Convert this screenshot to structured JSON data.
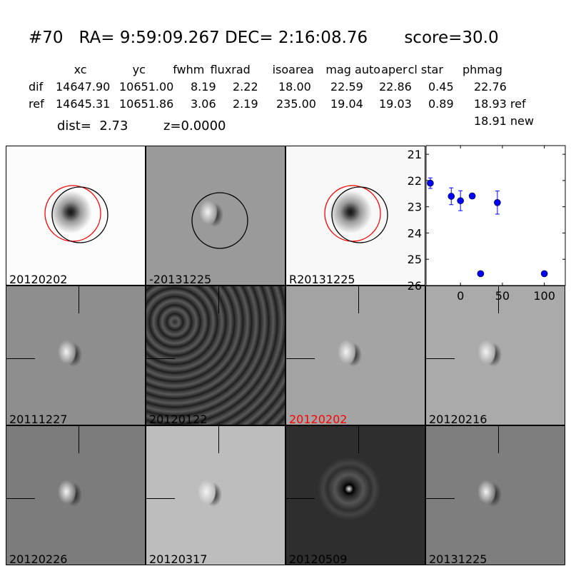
{
  "title": "#70   RA= 9:59:09.267 DEC= 2:16:08.76       score=30.0",
  "table": {
    "headers": [
      "xc",
      "yc",
      "fwhm",
      "fluxrad",
      "isoarea",
      "mag auto",
      "aper",
      "cl star",
      "phmag"
    ],
    "rows": [
      {
        "label": "dif",
        "values": [
          "14647.90",
          "10651.00",
          "8.19",
          "2.22",
          "18.00",
          "22.59",
          "22.86",
          "0.45",
          "22.76"
        ]
      },
      {
        "label": "ref",
        "values": [
          "14645.31",
          "10651.86",
          "3.06",
          "2.19",
          "235.00",
          "19.04",
          "19.03",
          "0.89",
          "18.93 ref"
        ]
      }
    ],
    "extra": "18.91 new"
  },
  "dist": "dist=  2.73",
  "z": "z=0.0000",
  "panels": [
    {
      "label": "20120202",
      "bg": "#fcfcfc",
      "blob": "dark"
    },
    {
      "label": "-20131225",
      "bg": "#9a9a9a",
      "blob": "dipole"
    },
    {
      "label": "R20131225",
      "bg": "#f8f8f8",
      "blob": "dark"
    },
    null,
    {
      "label": "20111227",
      "bg": "#8e8e8e",
      "blob": "dipole"
    },
    {
      "label": "20120122",
      "bg": "#7a7a7a",
      "blob": "noise"
    },
    {
      "label": "20120202",
      "bg": "#a4a4a4",
      "blob": "dipole",
      "label_color": "#ff0000"
    },
    {
      "label": "20120216",
      "bg": "#aaaaaa",
      "blob": "dipole"
    },
    {
      "label": "20120226",
      "bg": "#7c7c7c",
      "blob": "dipole"
    },
    {
      "label": "20120317",
      "bg": "#bdbdbd",
      "blob": "dipole"
    },
    {
      "label": "20120509",
      "bg": "#2e2e2e",
      "blob": "ring"
    },
    {
      "label": "20131225",
      "bg": "#7e7e7e",
      "blob": "dipole"
    }
  ],
  "chart_data": {
    "type": "scatter",
    "title": "",
    "xlabel": "",
    "ylabel": "",
    "xlim": [
      -41,
      125
    ],
    "ylim": [
      26,
      20.67
    ],
    "y_inverted": true,
    "xticks": [
      "0",
      "50",
      "100"
    ],
    "yticks": [
      "21",
      "22",
      "23",
      "24",
      "25",
      "26"
    ],
    "color": "#0000ff",
    "points": [
      {
        "x": -36,
        "y": 22.1,
        "err": 0.2
      },
      {
        "x": -11,
        "y": 22.6,
        "err": 0.32
      },
      {
        "x": 0,
        "y": 22.77,
        "err": 0.38
      },
      {
        "x": 14,
        "y": 22.59,
        "err": 0.1
      },
      {
        "x": 44,
        "y": 22.84,
        "err": 0.44
      },
      {
        "x": 24,
        "y": 25.55,
        "err": 0.05
      },
      {
        "x": 100,
        "y": 25.55,
        "err": 0.05
      }
    ]
  }
}
